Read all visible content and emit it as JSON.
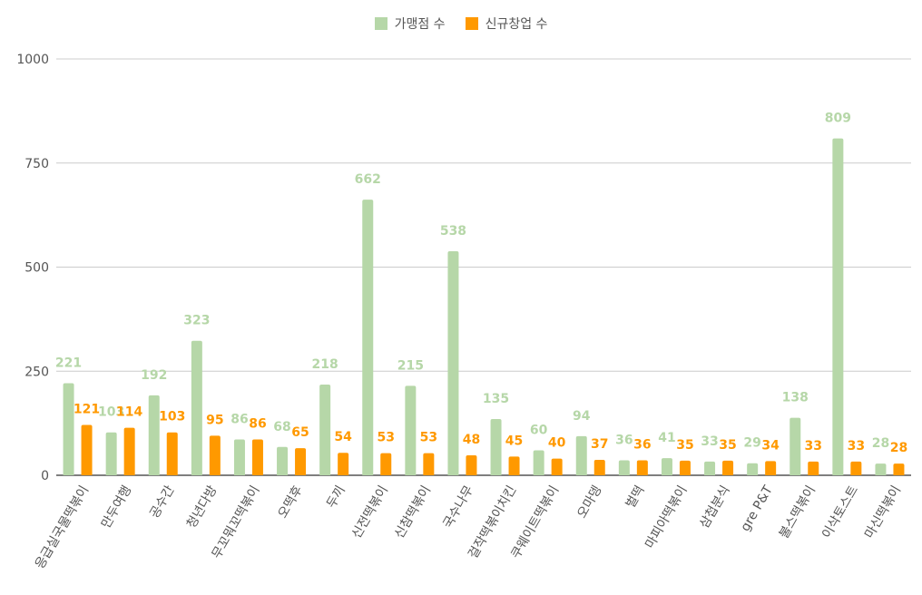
{
  "chart_data": {
    "type": "bar",
    "categories": [
      "응급실국물떡볶이",
      "만두여행",
      "공수간",
      "청년다방",
      "무꼬뭐꼬떡볶이",
      "오떡후",
      "두끼",
      "신전떡볶이",
      "신참떡볶이",
      "국수나무",
      "걸작떡볶이치킨",
      "쿠웨이트떡볶이",
      "오마뎅",
      "벌떡",
      "마피아떡볶이",
      "삼첩분식",
      "gre P&T",
      "불스떡볶이",
      "이삭토스트",
      "마신떡볶이"
    ],
    "series": [
      {
        "name": "가맹점 수",
        "color": "#b6d7a8",
        "values": [
          221,
          103,
          192,
          323,
          86,
          68,
          218,
          662,
          215,
          538,
          135,
          60,
          94,
          36,
          41,
          33,
          29,
          138,
          809,
          28
        ]
      },
      {
        "name": "신규창업 수",
        "color": "#ff9900",
        "values": [
          121,
          114,
          103,
          95,
          86,
          65,
          54,
          53,
          53,
          48,
          45,
          40,
          37,
          36,
          35,
          35,
          34,
          33,
          33,
          28
        ]
      }
    ],
    "yticks": [
      0,
      250,
      500,
      750,
      1000
    ],
    "ylim": [
      0,
      1000
    ],
    "grid": true,
    "legend_position": "top",
    "title": "",
    "xlabel": "",
    "ylabel": ""
  }
}
